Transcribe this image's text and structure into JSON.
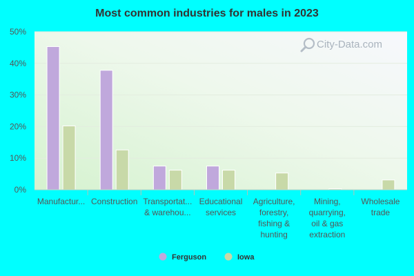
{
  "watermark": "City-Data.com",
  "chart_data": {
    "type": "bar",
    "title": "Most common industries for males in 2023",
    "xlabel": "",
    "ylabel": "",
    "ylim": [
      0,
      50
    ],
    "yticks": [
      "0%",
      "10%",
      "20%",
      "30%",
      "40%",
      "50%"
    ],
    "categories": [
      [
        "Manufactur..."
      ],
      [
        "Construction"
      ],
      [
        "Transportat...",
        "& warehou..."
      ],
      [
        "Educational",
        "services"
      ],
      [
        "Agriculture,",
        "forestry,",
        "fishing &",
        "hunting"
      ],
      [
        "Mining,",
        "quarrying,",
        "oil & gas",
        "extraction"
      ],
      [
        "Wholesale",
        "trade"
      ]
    ],
    "series": [
      {
        "name": "Ferguson",
        "color": "#c0a8dc",
        "values": [
          45.3,
          37.8,
          7.5,
          7.5,
          0,
          0,
          0
        ]
      },
      {
        "name": "Iowa",
        "color": "#c8d9a8",
        "values": [
          20.2,
          12.6,
          6.2,
          6.2,
          5.3,
          0.3,
          3.1
        ]
      }
    ],
    "legend_position": "bottom"
  }
}
